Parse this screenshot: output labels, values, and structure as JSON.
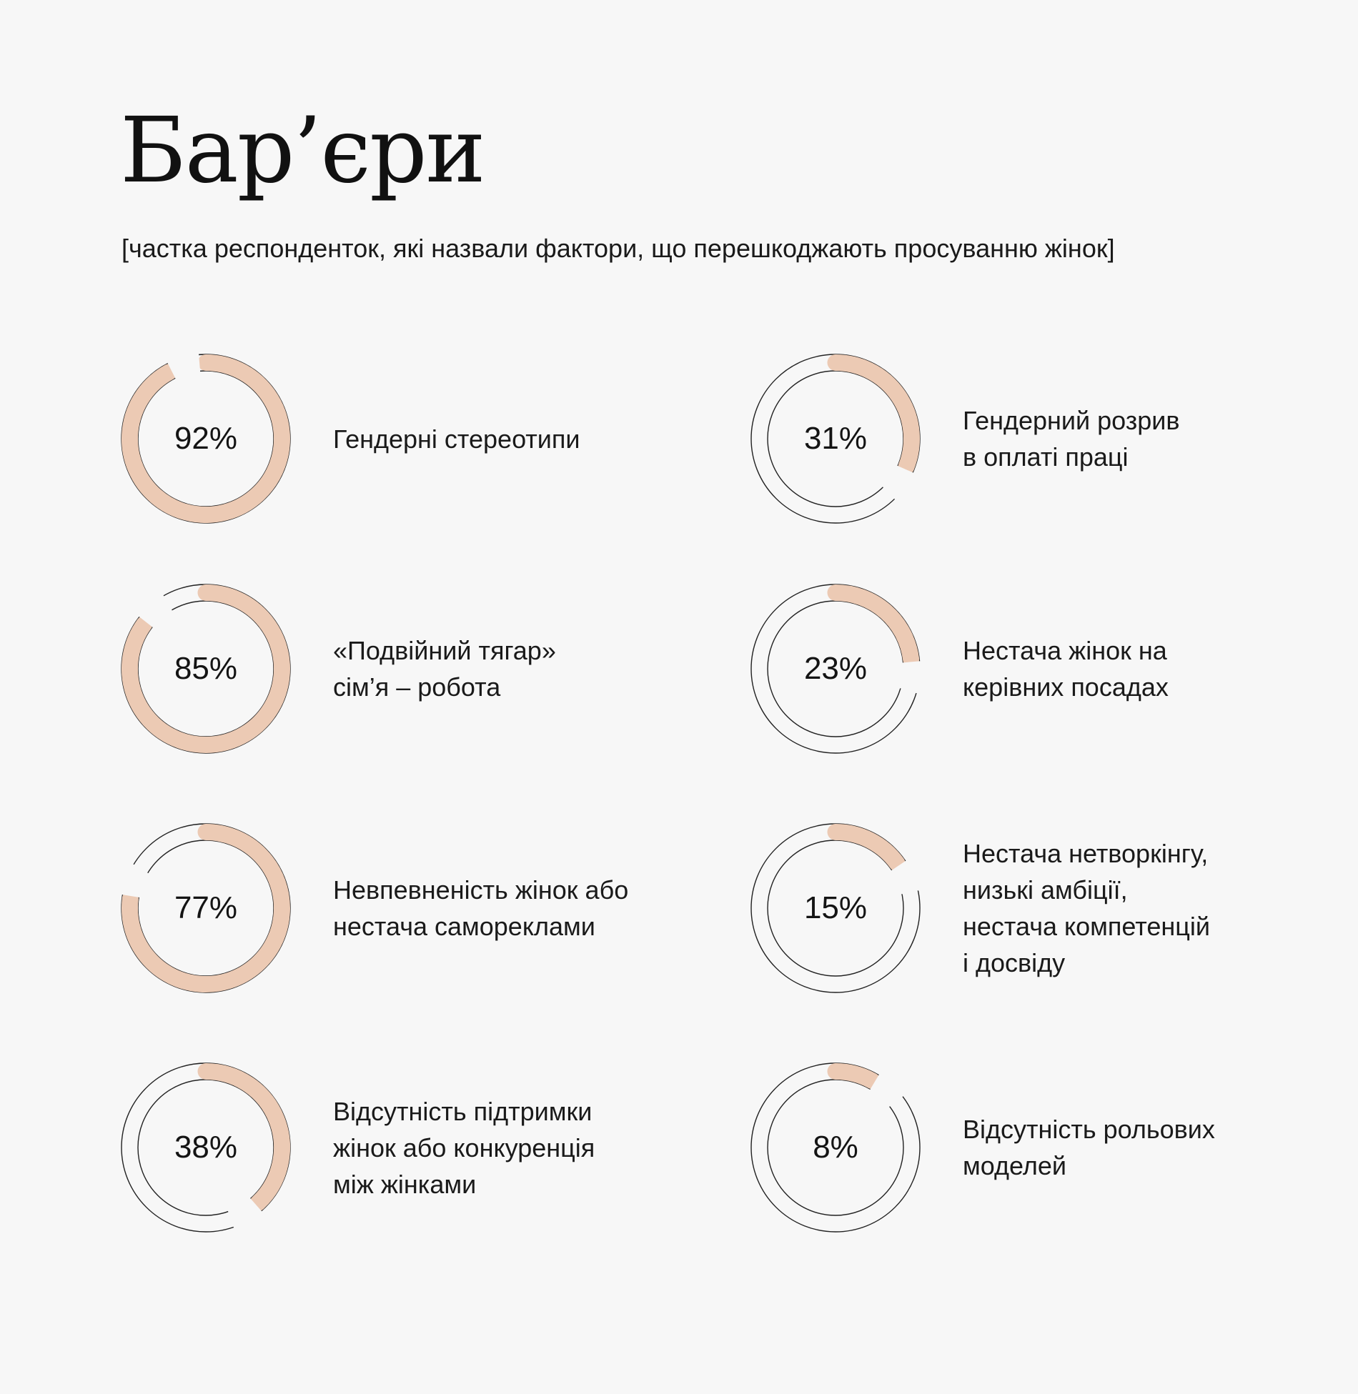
{
  "title": "Бар’єри",
  "subtitle": "[частка респонденток, які назвали фактори, що перешкоджають просуванню жінок]",
  "colors": {
    "background": "#f7f7f7",
    "progress": "#eccab4",
    "ring_outline": "#222222",
    "text": "#141414"
  },
  "chart_data": {
    "type": "donut",
    "unit": "%",
    "items": [
      {
        "value": 92,
        "label": "92%",
        "lines": [
          "Гендерні стереотипи"
        ]
      },
      {
        "value": 85,
        "label": "85%",
        "lines": [
          "«Подвійний тягар»",
          "сім’я – робота"
        ]
      },
      {
        "value": 77,
        "label": "77%",
        "lines": [
          "Невпевненість жінок або",
          "нестача самореклами"
        ]
      },
      {
        "value": 38,
        "label": "38%",
        "lines": [
          "Відсутність підтримки",
          "жінок або конкуренція",
          "між жінками"
        ]
      },
      {
        "value": 31,
        "label": "31%",
        "lines": [
          "Гендерний розрив",
          "в оплаті праці"
        ]
      },
      {
        "value": 23,
        "label": "23%",
        "lines": [
          "Нестача жінок на",
          "керівних посадах"
        ]
      },
      {
        "value": 15,
        "label": "15%",
        "lines": [
          "Нестача нетворкінгу,",
          "низькі амбіції,",
          "нестача компетенцій",
          "і досвіду"
        ]
      },
      {
        "value": 8,
        "label": "8%",
        "lines": [
          "Відсутність рольових",
          "моделей"
        ]
      }
    ]
  }
}
